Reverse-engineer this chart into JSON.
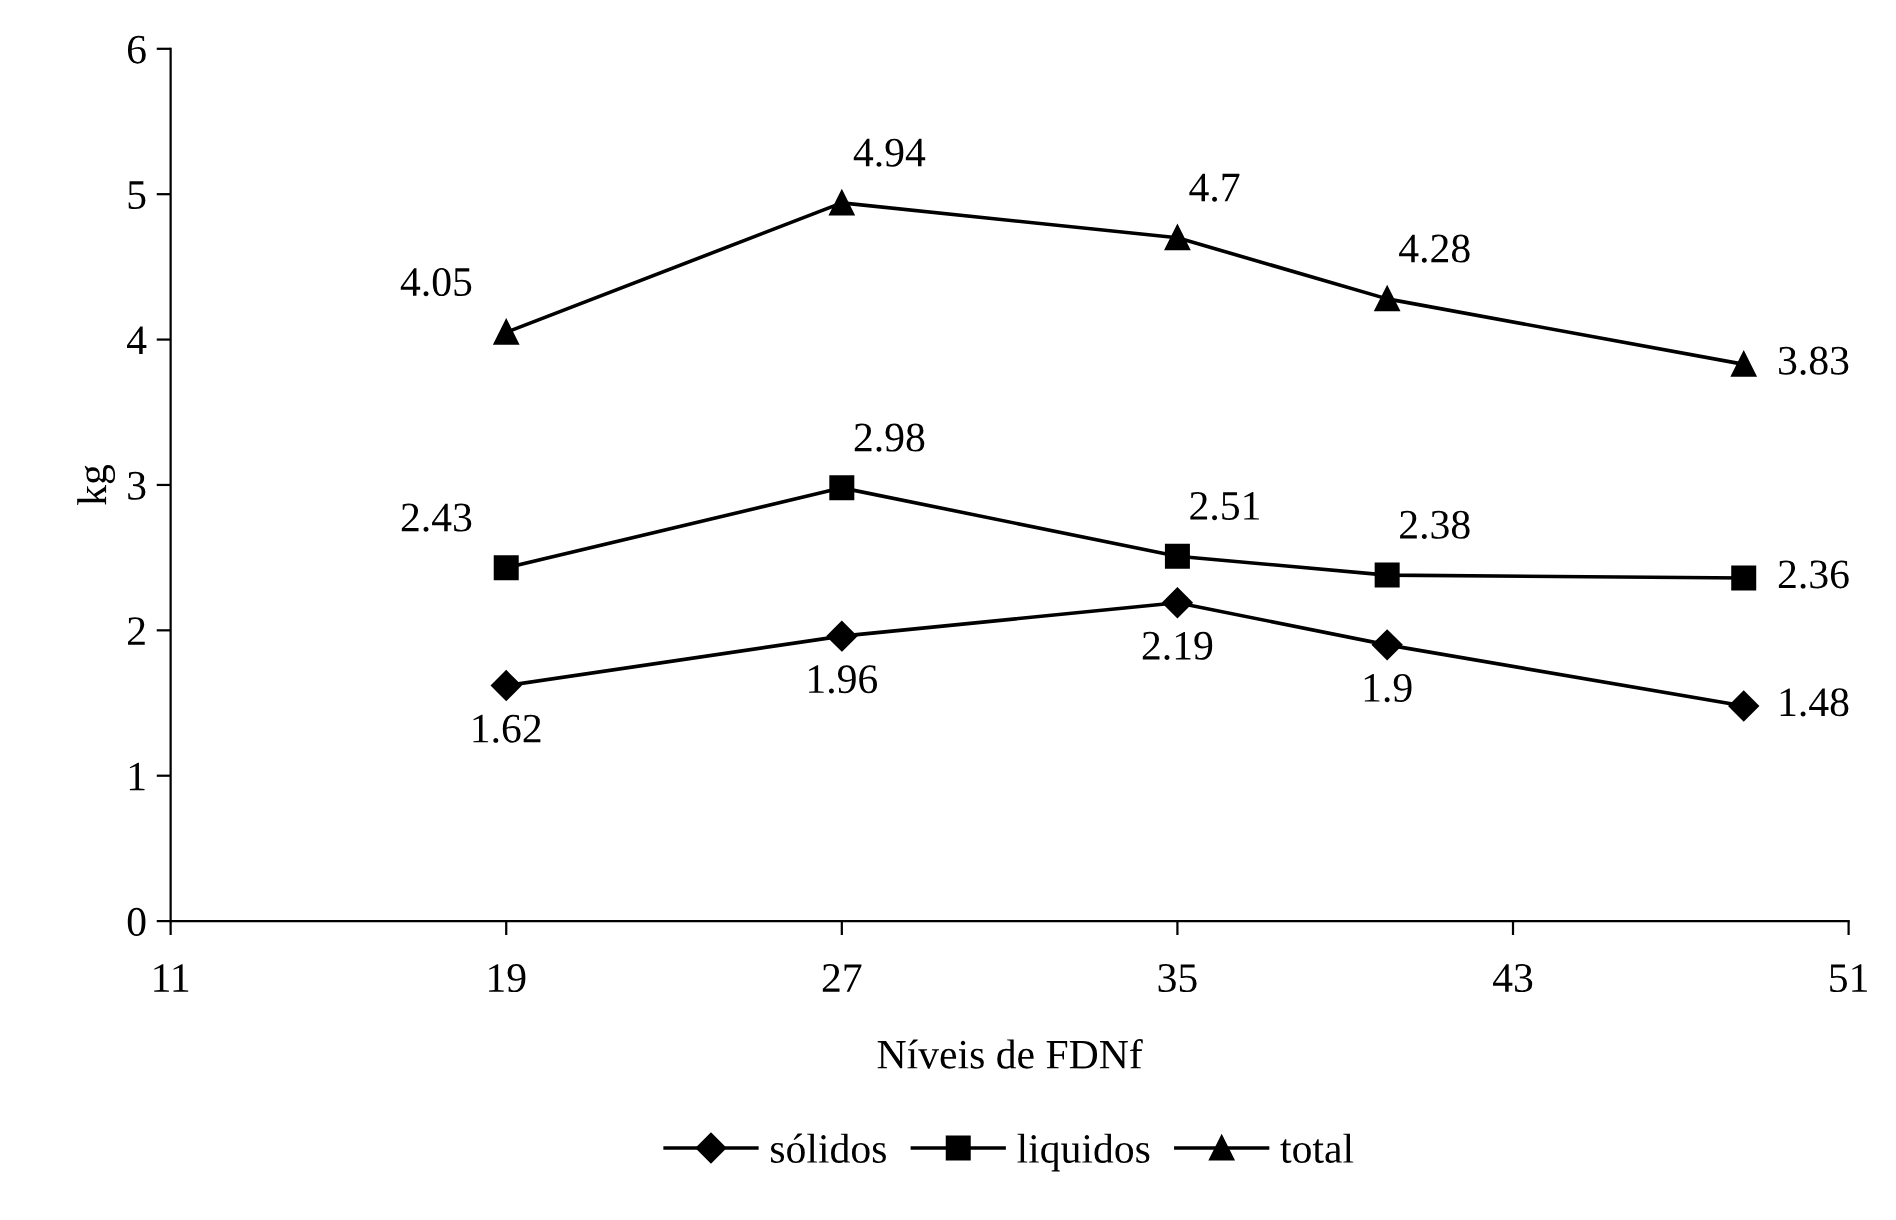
{
  "chart_data": {
    "type": "line",
    "xlabel": "Níveis de FDNf",
    "ylabel": "kg",
    "x": [
      19,
      27,
      35,
      40,
      48.5
    ],
    "xlim": [
      11,
      51
    ],
    "xticks": [
      11,
      19,
      27,
      35,
      43,
      51
    ],
    "ylim": [
      0,
      6
    ],
    "yticks": [
      0,
      1,
      2,
      3,
      4,
      5,
      6
    ],
    "grid": false,
    "legend": "bottom",
    "data_labels": true,
    "line_style": "solid",
    "series": [
      {
        "name": "sólidos",
        "color": "#000000",
        "marker": "diamond",
        "values": [
          1.62,
          1.96,
          2.19,
          1.9,
          1.48
        ]
      },
      {
        "name": "liquidos",
        "color": "#000000",
        "marker": "square",
        "values": [
          2.43,
          2.98,
          2.51,
          2.38,
          2.36
        ]
      },
      {
        "name": "total",
        "color": "#000000",
        "marker": "triangle",
        "values": [
          4.05,
          4.94,
          4.7,
          4.28,
          3.83
        ]
      }
    ]
  }
}
